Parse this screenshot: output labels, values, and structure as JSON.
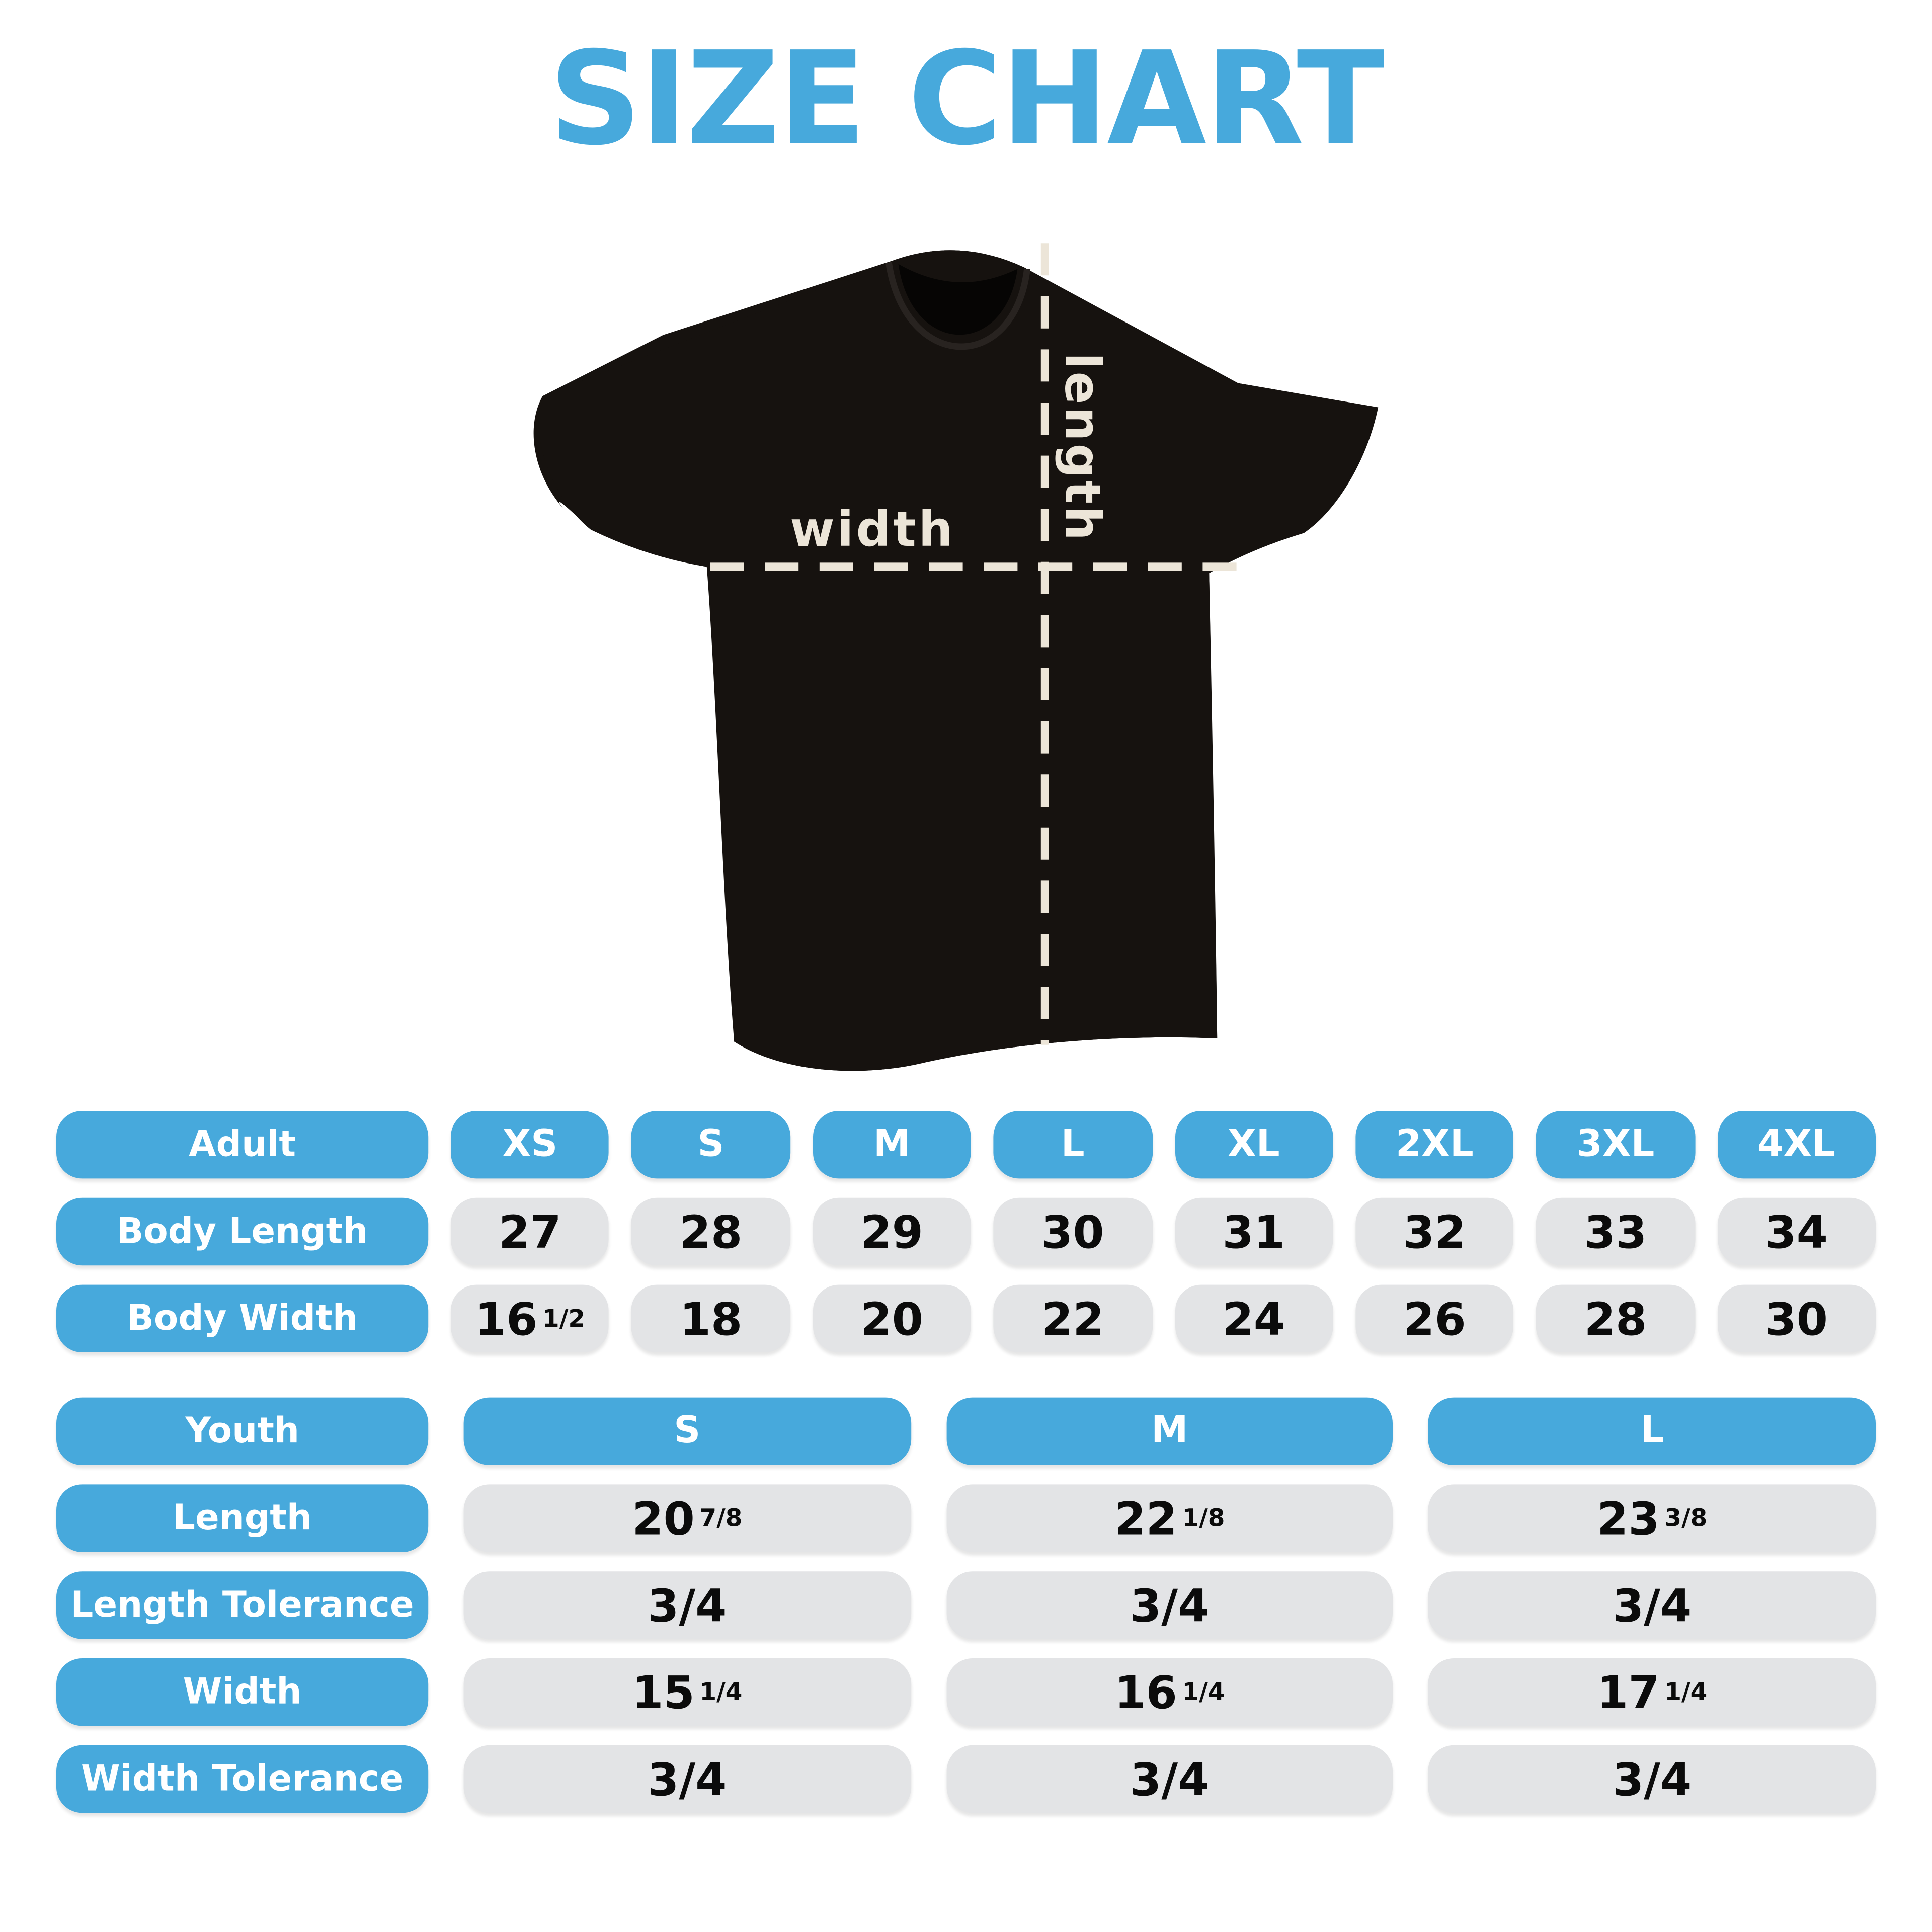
{
  "title": "SIZE CHART",
  "colors": {
    "accent-blue": "#47a9dc",
    "pill-gray": "#e3e4e6",
    "shirt-black": "#16120f",
    "dash-cream": "#ece5d8"
  },
  "shirt": {
    "width_label": "width",
    "length_label": "length"
  },
  "adult_table": {
    "header": {
      "label": "Adult",
      "sizes": [
        "XS",
        "S",
        "M",
        "L",
        "XL",
        "2XL",
        "3XL",
        "4XL"
      ]
    },
    "rows": [
      {
        "label": "Body Length",
        "values": [
          {
            "text": "27"
          },
          {
            "text": "28"
          },
          {
            "text": "29"
          },
          {
            "text": "30"
          },
          {
            "text": "31"
          },
          {
            "text": "32"
          },
          {
            "text": "33"
          },
          {
            "text": "34"
          }
        ]
      },
      {
        "label": "Body Width",
        "values": [
          {
            "text": "16",
            "frac": "1/2"
          },
          {
            "text": "18"
          },
          {
            "text": "20"
          },
          {
            "text": "22"
          },
          {
            "text": "24"
          },
          {
            "text": "26"
          },
          {
            "text": "28"
          },
          {
            "text": "30"
          }
        ]
      }
    ]
  },
  "youth_table": {
    "header": {
      "label": "Youth",
      "sizes": [
        "S",
        "M",
        "L"
      ]
    },
    "rows": [
      {
        "label": "Length",
        "values": [
          {
            "text": "20",
            "frac": "7/8"
          },
          {
            "text": "22",
            "frac": "1/8"
          },
          {
            "text": "23",
            "frac": "3/8"
          }
        ]
      },
      {
        "label": "Length Tolerance",
        "values": [
          {
            "text": "3/4"
          },
          {
            "text": "3/4"
          },
          {
            "text": "3/4"
          }
        ]
      },
      {
        "label": "Width",
        "values": [
          {
            "text": "15",
            "frac": "1/4"
          },
          {
            "text": "16",
            "frac": "1/4"
          },
          {
            "text": "17",
            "frac": "1/4"
          }
        ]
      },
      {
        "label": "Width Tolerance",
        "values": [
          {
            "text": "3/4"
          },
          {
            "text": "3/4"
          },
          {
            "text": "3/4"
          }
        ]
      }
    ]
  }
}
